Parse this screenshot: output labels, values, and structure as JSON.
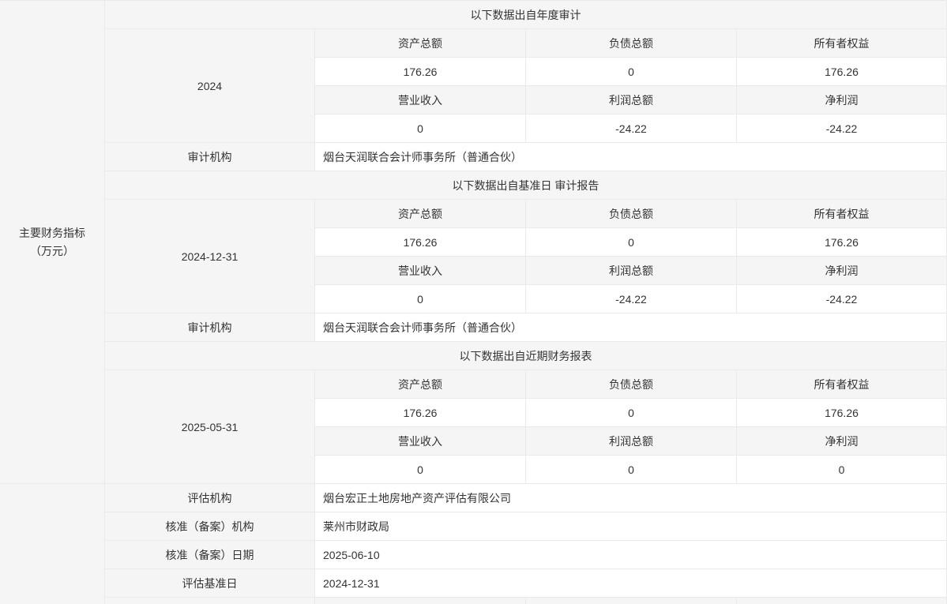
{
  "palette": {
    "cell_gray": "#f5f5f5",
    "cell_white": "#ffffff",
    "border": "#e9e9e9",
    "text": "#333333"
  },
  "left_panel": {
    "line1": "主要财务指标",
    "line2": "（万元）"
  },
  "financial_sections": [
    {
      "header": "以下数据出自年度审计",
      "period": "2024",
      "metric_rows": [
        {
          "headers": [
            "资产总额",
            "负债总额",
            "所有者权益"
          ],
          "values": [
            "176.26",
            "0",
            "176.26"
          ]
        },
        {
          "headers": [
            "营业收入",
            "利润总额",
            "净利润"
          ],
          "values": [
            "0",
            "-24.22",
            "-24.22"
          ]
        }
      ],
      "footer_label": "审计机构",
      "footer_value": "烟台天润联合会计师事务所（普通合伙）"
    },
    {
      "header": "以下数据出自基准日 审计报告",
      "period": "2024-12-31",
      "metric_rows": [
        {
          "headers": [
            "资产总额",
            "负债总额",
            "所有者权益"
          ],
          "values": [
            "176.26",
            "0",
            "176.26"
          ]
        },
        {
          "headers": [
            "营业收入",
            "利润总额",
            "净利润"
          ],
          "values": [
            "0",
            "-24.22",
            "-24.22"
          ]
        }
      ],
      "footer_label": "审计机构",
      "footer_value": "烟台天润联合会计师事务所（普通合伙）"
    },
    {
      "header": "以下数据出自近期财务报表",
      "period": "2025-05-31",
      "metric_rows": [
        {
          "headers": [
            "资产总额",
            "负债总额",
            "所有者权益"
          ],
          "values": [
            "176.26",
            "0",
            "176.26"
          ]
        },
        {
          "headers": [
            "营业收入",
            "利润总额",
            "净利润"
          ],
          "values": [
            "0",
            "0",
            "0"
          ]
        }
      ]
    }
  ],
  "info_rows": [
    {
      "label": "评估机构",
      "value": "烟台宏正土地房地产资产评估有限公司"
    },
    {
      "label": "核准（备案）机构",
      "value": "莱州市财政局"
    },
    {
      "label": "核准（备案）日期",
      "value": "2025-06-10"
    },
    {
      "label": "评估基准日",
      "value": "2024-12-31"
    }
  ]
}
